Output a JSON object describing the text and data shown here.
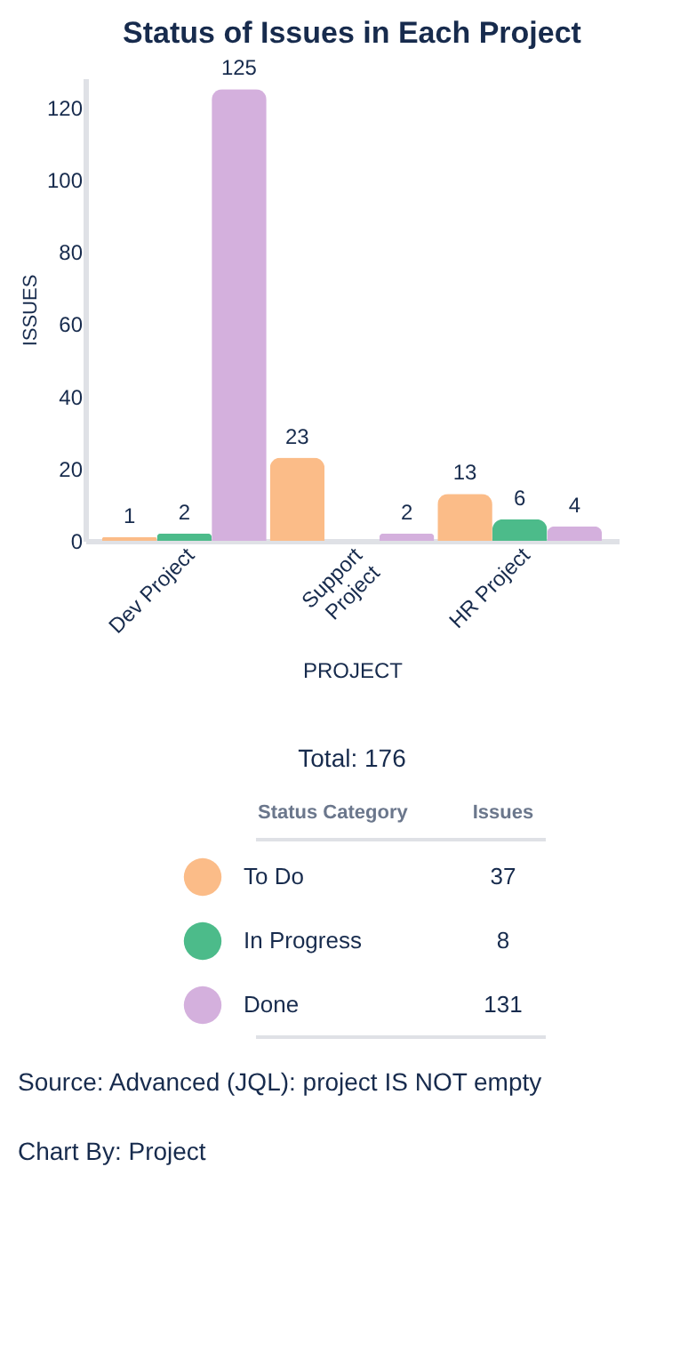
{
  "chart_data": {
    "type": "bar",
    "title": "Status of Issues in Each Project",
    "xlabel": "PROJECT",
    "ylabel": "ISSUES",
    "categories": [
      "Dev Project",
      "Support Project",
      "HR Project"
    ],
    "series": [
      {
        "name": "To Do",
        "color": "#fbbc88",
        "values": [
          1,
          23,
          13
        ]
      },
      {
        "name": "In Progress",
        "color": "#4cbb8a",
        "values": [
          2,
          null,
          6
        ]
      },
      {
        "name": "Done",
        "color": "#d4b0dd",
        "values": [
          125,
          2,
          4
        ]
      }
    ],
    "ylim": [
      0,
      128
    ],
    "yticks": [
      0,
      20,
      40,
      60,
      80,
      100,
      120
    ],
    "grid": false,
    "data_labels": true,
    "legend": "bottom",
    "annotations": [
      "Total: 176",
      "Status Category",
      "Issues",
      "37",
      "8",
      "131",
      "Source: Advanced (JQL): project IS NOT empty",
      "Chart By: Project"
    ]
  }
}
